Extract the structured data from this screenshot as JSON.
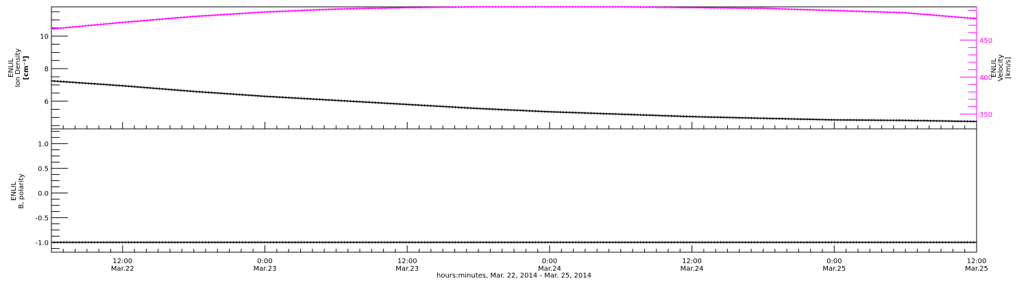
{
  "colors": {
    "density": "#000000",
    "velocity": "#ff00ff",
    "polarity": "#000000",
    "axis": "#000000"
  },
  "chart_data": [
    {
      "type": "scatter",
      "panel": "top",
      "ylabel_lines": [
        "ENLIL",
        "Ion Density",
        "[cm⁻³]"
      ],
      "ylim": [
        4.3,
        11.8
      ],
      "yticks": [
        6,
        8,
        10
      ],
      "series": [
        {
          "name": "ENLIL Ion Density",
          "axis": "left",
          "color": "#000000",
          "x_hours": [
            0,
            6,
            12,
            18,
            24,
            30,
            36,
            42,
            48,
            54,
            60,
            66,
            72,
            78
          ],
          "values": [
            7.25,
            6.95,
            6.6,
            6.3,
            6.05,
            5.8,
            5.55,
            5.35,
            5.2,
            5.05,
            4.95,
            4.85,
            4.82,
            4.75
          ]
        },
        {
          "name": "ENLIL Velocity",
          "axis": "right",
          "color": "#ff00ff",
          "x_hours": [
            0,
            6,
            12,
            18,
            24,
            30,
            36,
            42,
            48,
            54,
            60,
            66,
            72,
            78
          ],
          "values": [
            465,
            474,
            482,
            488,
            492,
            494,
            495,
            495,
            495,
            494,
            493,
            490,
            487,
            479
          ]
        }
      ],
      "y2label_lines": [
        "ENLIL",
        "Velocity",
        "[km/s]"
      ],
      "y2lim": [
        330,
        495
      ],
      "y2ticks": [
        350,
        400,
        450
      ]
    },
    {
      "type": "scatter",
      "panel": "bottom",
      "ylabel_lines": [
        "ENLIL",
        "B, polarity"
      ],
      "ylim": [
        -1.2,
        1.3
      ],
      "yticks": [
        -1.0,
        -0.5,
        0.0,
        0.5,
        1.0
      ],
      "ytick_labels": [
        "-1.0",
        "-0.5",
        "0.0",
        "0.5",
        "1.0"
      ],
      "series": [
        {
          "name": "ENLIL B polarity",
          "axis": "left",
          "color": "#000000",
          "x_hours": [
            0,
            78
          ],
          "values": [
            -1.0,
            -1.0
          ]
        }
      ],
      "xlabel": "hours:minutes, Mar. 22, 2014 - Mar. 25, 2014",
      "xlim_hours": [
        0,
        78
      ],
      "xticks": [
        {
          "hour": 6,
          "time": "12:00",
          "date": "Mar.22"
        },
        {
          "hour": 18,
          "time": "0:00",
          "date": "Mar.23"
        },
        {
          "hour": 30,
          "time": "12:00",
          "date": "Mar.23"
        },
        {
          "hour": 42,
          "time": "0:00",
          "date": "Mar.24"
        },
        {
          "hour": 54,
          "time": "12:00",
          "date": "Mar.24"
        },
        {
          "hour": 66,
          "time": "0:00",
          "date": "Mar.25"
        },
        {
          "hour": 78,
          "time": "12:00",
          "date": "Mar.25"
        }
      ]
    }
  ]
}
